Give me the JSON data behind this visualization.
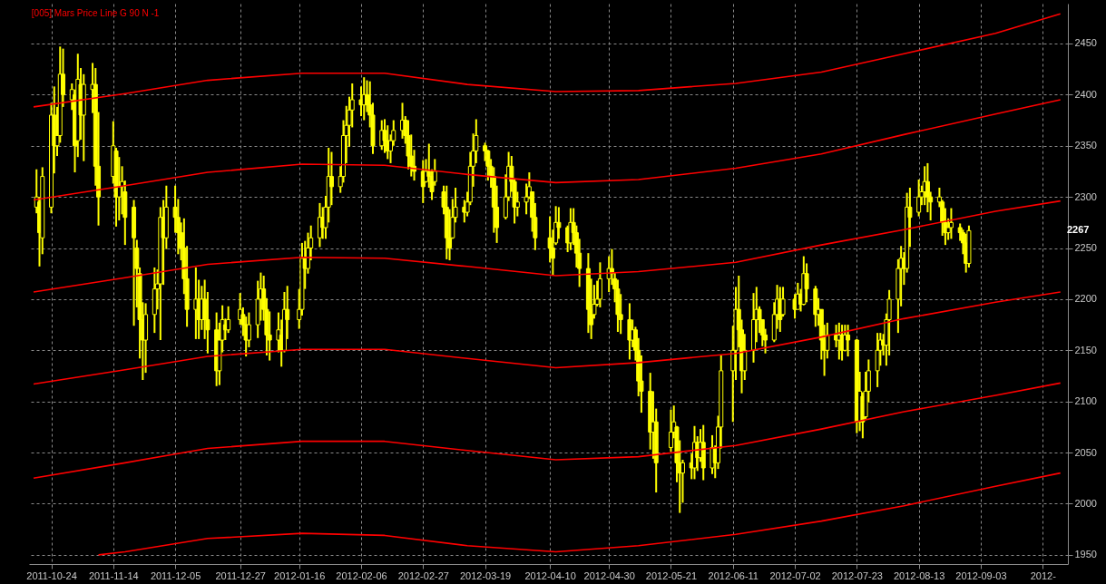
{
  "chart_data": {
    "type": "candlestick",
    "title": "[005] Mars Price Line G 90 N -1",
    "color": "#ffff00",
    "x": [
      "2011-10-19",
      "2011-10-20",
      "2011-10-21",
      "2011-10-24",
      "2011-10-25",
      "2011-10-26",
      "2011-10-27",
      "2011-10-28",
      "2011-10-31",
      "2011-11-01",
      "2011-11-02",
      "2011-11-03",
      "2011-11-04",
      "2011-11-07",
      "2011-11-08",
      "2011-11-09",
      "2011-11-14",
      "2011-11-15",
      "2011-11-16",
      "2011-11-17",
      "2011-11-18",
      "2011-11-21",
      "2011-11-22",
      "2011-11-23",
      "2011-11-24",
      "2011-11-25",
      "2011-11-28",
      "2011-11-29",
      "2011-11-30",
      "2011-12-01",
      "2011-12-02",
      "2011-12-05",
      "2011-12-06",
      "2011-12-07",
      "2011-12-08",
      "2011-12-09",
      "2011-12-12",
      "2011-12-13",
      "2011-12-14",
      "2011-12-15",
      "2011-12-16",
      "2011-12-19",
      "2011-12-20",
      "2011-12-21",
      "2011-12-22",
      "2011-12-23",
      "2011-12-27",
      "2011-12-28",
      "2011-12-29",
      "2011-12-30",
      "2012-01-02",
      "2012-01-03",
      "2012-01-04",
      "2012-01-05",
      "2012-01-06",
      "2012-01-09",
      "2012-01-10",
      "2012-01-11",
      "2012-01-12",
      "2012-01-16",
      "2012-01-17",
      "2012-01-18",
      "2012-01-19",
      "2012-01-20",
      "2012-01-23",
      "2012-01-24",
      "2012-01-25",
      "2012-01-26",
      "2012-01-27",
      "2012-01-30",
      "2012-01-31",
      "2012-02-01",
      "2012-02-02",
      "2012-02-03",
      "2012-02-06",
      "2012-02-07",
      "2012-02-08",
      "2012-02-09",
      "2012-02-10",
      "2012-02-13",
      "2012-02-14",
      "2012-02-15",
      "2012-02-16",
      "2012-02-17",
      "2012-02-20",
      "2012-02-21",
      "2012-02-22",
      "2012-02-23",
      "2012-02-24",
      "2012-02-27",
      "2012-02-28",
      "2012-02-29",
      "2012-03-01",
      "2012-03-02",
      "2012-03-05",
      "2012-03-06",
      "2012-03-07",
      "2012-03-08",
      "2012-03-09",
      "2012-03-12",
      "2012-03-13",
      "2012-03-14",
      "2012-03-15",
      "2012-03-16",
      "2012-03-19",
      "2012-03-20",
      "2012-03-21",
      "2012-03-22",
      "2012-03-23",
      "2012-03-26",
      "2012-03-27",
      "2012-03-28",
      "2012-03-29",
      "2012-03-30",
      "2012-04-02",
      "2012-04-03",
      "2012-04-04",
      "2012-04-05",
      "2012-04-10",
      "2012-04-11",
      "2012-04-12",
      "2012-04-13",
      "2012-04-16",
      "2012-04-17",
      "2012-04-18",
      "2012-04-19",
      "2012-04-20",
      "2012-04-23",
      "2012-04-24",
      "2012-04-25",
      "2012-04-26",
      "2012-04-27",
      "2012-04-30",
      "2012-05-01",
      "2012-05-02",
      "2012-05-03",
      "2012-05-04",
      "2012-05-07",
      "2012-05-08",
      "2012-05-09",
      "2012-05-10",
      "2012-05-11",
      "2012-05-14",
      "2012-05-15",
      "2012-05-16",
      "2012-05-21",
      "2012-05-22",
      "2012-05-23",
      "2012-05-24",
      "2012-05-25",
      "2012-05-28",
      "2012-05-29",
      "2012-05-30",
      "2012-05-31",
      "2012-06-01",
      "2012-06-04",
      "2012-06-05",
      "2012-06-06",
      "2012-06-07",
      "2012-06-11",
      "2012-06-12",
      "2012-06-13",
      "2012-06-14",
      "2012-06-15",
      "2012-06-18",
      "2012-06-19",
      "2012-06-20",
      "2012-06-21",
      "2012-06-22",
      "2012-06-25",
      "2012-06-26",
      "2012-06-27",
      "2012-06-28",
      "2012-07-02",
      "2012-07-03",
      "2012-07-04",
      "2012-07-05",
      "2012-07-06",
      "2012-07-09",
      "2012-07-10",
      "2012-07-11",
      "2012-07-12",
      "2012-07-13",
      "2012-07-16",
      "2012-07-17",
      "2012-07-18",
      "2012-07-19",
      "2012-07-20",
      "2012-07-23",
      "2012-07-24",
      "2012-07-25",
      "2012-07-26",
      "2012-07-27",
      "2012-07-30",
      "2012-07-31",
      "2012-08-01",
      "2012-08-02",
      "2012-08-03",
      "2012-08-06",
      "2012-08-07",
      "2012-08-08",
      "2012-08-09",
      "2012-08-10",
      "2012-08-13",
      "2012-08-14",
      "2012-08-15",
      "2012-08-16",
      "2012-08-17",
      "2012-08-20",
      "2012-08-21",
      "2012-08-22",
      "2012-08-23",
      "2012-08-24",
      "2012-08-27",
      "2012-08-28",
      "2012-08-29",
      "2012-08-30"
    ],
    "ohlc": [
      [
        2290,
        2327,
        2284,
        2300
      ],
      [
        2295,
        2300,
        2232,
        2265
      ],
      [
        2260,
        2329,
        2244,
        2320
      ],
      [
        2290,
        2392,
        2284,
        2380
      ],
      [
        2380,
        2408,
        2323,
        2350
      ],
      [
        2350,
        2388,
        2340,
        2360
      ],
      [
        2360,
        2447,
        2353,
        2420
      ],
      [
        2420,
        2445,
        2388,
        2400
      ],
      [
        2395,
        2411,
        2385,
        2405
      ],
      [
        2400,
        2405,
        2324,
        2350
      ],
      [
        2355,
        2440,
        2339,
        2415
      ],
      [
        2410,
        2426,
        2356,
        2380
      ],
      [
        2380,
        2420,
        2335,
        2410
      ],
      [
        2405,
        2431,
        2382,
        2410
      ],
      [
        2410,
        2426,
        2311,
        2330
      ],
      [
        2330,
        2383,
        2272,
        2300
      ],
      [
        2320,
        2374,
        2313,
        2350
      ],
      [
        2345,
        2348,
        2271,
        2300
      ],
      [
        2300,
        2339,
        2277,
        2310
      ],
      [
        2310,
        2330,
        2283,
        2315
      ],
      [
        2305,
        2316,
        2253,
        2280
      ],
      [
        2290,
        2297,
        2174,
        2260
      ],
      [
        2250,
        2258,
        2192,
        2230
      ],
      [
        2225,
        2231,
        2142,
        2180
      ],
      [
        2180,
        2197,
        2121,
        2160
      ],
      [
        2160,
        2196,
        2128,
        2185
      ],
      [
        2185,
        2231,
        2167,
        2210
      ],
      [
        2210,
        2229,
        2190,
        2215
      ],
      [
        2215,
        2290,
        2160,
        2280
      ],
      [
        2280,
        2297,
        2214,
        2260
      ],
      [
        2260,
        2311,
        2249,
        2290
      ],
      [
        2290,
        2311,
        2265,
        2280
      ],
      [
        2280,
        2298,
        2244,
        2265
      ],
      [
        2265,
        2275,
        2238,
        2250
      ],
      [
        2250,
        2279,
        2205,
        2220
      ],
      [
        2220,
        2252,
        2173,
        2190
      ],
      [
        2190,
        2231,
        2161,
        2200
      ],
      [
        2200,
        2219,
        2161,
        2180
      ],
      [
        2180,
        2213,
        2170,
        2200
      ],
      [
        2200,
        2219,
        2161,
        2180
      ],
      [
        2180,
        2207,
        2147,
        2170
      ],
      [
        2170,
        2187,
        2115,
        2130
      ],
      [
        2130,
        2177,
        2116,
        2160
      ],
      [
        2160,
        2194,
        2148,
        2180
      ],
      [
        2175,
        2181,
        2160,
        2170
      ],
      [
        2170,
        2193,
        2167,
        2180
      ],
      [
        2180,
        2206,
        2175,
        2190
      ],
      [
        2185,
        2192,
        2164,
        2175
      ],
      [
        2175,
        2183,
        2144,
        2160
      ],
      [
        2160,
        2187,
        2153,
        2175
      ],
      [
        2175,
        2218,
        2162,
        2200
      ],
      [
        2200,
        2226,
        2179,
        2210
      ],
      [
        2210,
        2223,
        2179,
        2190
      ],
      [
        2190,
        2201,
        2145,
        2165
      ],
      [
        2165,
        2188,
        2140,
        2160
      ],
      [
        2160,
        2187,
        2148,
        2170
      ],
      [
        2165,
        2180,
        2134,
        2150
      ],
      [
        2150,
        2207,
        2148,
        2190
      ],
      [
        2190,
        2213,
        2161,
        2180
      ],
      [
        2180,
        2210,
        2171,
        2190
      ],
      [
        2190,
        2255,
        2184,
        2240
      ],
      [
        2240,
        2257,
        2210,
        2230
      ],
      [
        2230,
        2265,
        2225,
        2250
      ],
      [
        2250,
        2272,
        2238,
        2260
      ],
      [
        2260,
        2294,
        2251,
        2280
      ],
      [
        2280,
        2290,
        2259,
        2270
      ],
      [
        2270,
        2301,
        2259,
        2290
      ],
      [
        2290,
        2348,
        2275,
        2320
      ],
      [
        2320,
        2344,
        2292,
        2310
      ],
      [
        2310,
        2330,
        2304,
        2320
      ],
      [
        2320,
        2375,
        2314,
        2360
      ],
      [
        2360,
        2389,
        2333,
        2370
      ],
      [
        2370,
        2398,
        2349,
        2385
      ],
      [
        2385,
        2411,
        2368,
        2395
      ],
      [
        2395,
        2408,
        2379,
        2390
      ],
      [
        2390,
        2417,
        2375,
        2400
      ],
      [
        2400,
        2414,
        2383,
        2390
      ],
      [
        2390,
        2413,
        2368,
        2380
      ],
      [
        2380,
        2392,
        2342,
        2350
      ],
      [
        2350,
        2375,
        2346,
        2365
      ],
      [
        2365,
        2376,
        2343,
        2355
      ],
      [
        2355,
        2370,
        2337,
        2345
      ],
      [
        2345,
        2361,
        2333,
        2355
      ],
      [
        2355,
        2375,
        2350,
        2365
      ],
      [
        2365,
        2392,
        2357,
        2375
      ],
      [
        2375,
        2379,
        2352,
        2360
      ],
      [
        2360,
        2375,
        2327,
        2340
      ],
      [
        2340,
        2361,
        2320,
        2330
      ],
      [
        2330,
        2346,
        2316,
        2325
      ],
      [
        2325,
        2336,
        2294,
        2310
      ],
      [
        2315,
        2337,
        2314,
        2325
      ],
      [
        2325,
        2352,
        2309,
        2320
      ],
      [
        2320,
        2327,
        2297,
        2305
      ],
      [
        2315,
        2337,
        2311,
        2325
      ],
      [
        2305,
        2311,
        2283,
        2290
      ],
      [
        2290,
        2311,
        2239,
        2260
      ],
      [
        2260,
        2288,
        2238,
        2250
      ],
      [
        2260,
        2298,
        2259,
        2280
      ],
      [
        2280,
        2309,
        2275,
        2290
      ],
      [
        2290,
        2297,
        2275,
        2285
      ],
      [
        2285,
        2305,
        2281,
        2295
      ],
      [
        2295,
        2344,
        2292,
        2330
      ],
      [
        2330,
        2362,
        2310,
        2345
      ],
      [
        2345,
        2376,
        2333,
        2360
      ],
      [
        2350,
        2353,
        2335,
        2345
      ],
      [
        2345,
        2346,
        2316,
        2330
      ],
      [
        2330,
        2337,
        2309,
        2320
      ],
      [
        2320,
        2329,
        2265,
        2290
      ],
      [
        2290,
        2311,
        2255,
        2270
      ],
      [
        2280,
        2322,
        2278,
        2300
      ],
      [
        2300,
        2344,
        2296,
        2330
      ],
      [
        2330,
        2340,
        2305,
        2315
      ],
      [
        2315,
        2318,
        2274,
        2290
      ],
      [
        2290,
        2305,
        2281,
        2295
      ],
      [
        2295,
        2313,
        2283,
        2300
      ],
      [
        2300,
        2324,
        2298,
        2310
      ],
      [
        2305,
        2305,
        2266,
        2280
      ],
      [
        2280,
        2294,
        2248,
        2260
      ],
      [
        2260,
        2281,
        2236,
        2250
      ],
      [
        2250,
        2268,
        2223,
        2240
      ],
      [
        2255,
        2291,
        2253,
        2275
      ],
      [
        2275,
        2290,
        2259,
        2270
      ],
      [
        2270,
        2272,
        2246,
        2255
      ],
      [
        2255,
        2289,
        2248,
        2275
      ],
      [
        2275,
        2289,
        2253,
        2265
      ],
      [
        2265,
        2272,
        2231,
        2245
      ],
      [
        2245,
        2259,
        2212,
        2230
      ],
      [
        2230,
        2245,
        2167,
        2190
      ],
      [
        2190,
        2220,
        2161,
        2175
      ],
      [
        2185,
        2214,
        2181,
        2195
      ],
      [
        2195,
        2218,
        2193,
        2200
      ],
      [
        2200,
        2236,
        2192,
        2220
      ],
      [
        2220,
        2242,
        2207,
        2230
      ],
      [
        2230,
        2249,
        2214,
        2225
      ],
      [
        2220,
        2226,
        2197,
        2210
      ],
      [
        2210,
        2219,
        2168,
        2185
      ],
      [
        2185,
        2205,
        2166,
        2180
      ],
      [
        2180,
        2196,
        2141,
        2160
      ],
      [
        2160,
        2180,
        2153,
        2170
      ],
      [
        2170,
        2173,
        2140,
        2150
      ],
      [
        2150,
        2162,
        2105,
        2120
      ],
      [
        2120,
        2145,
        2089,
        2110
      ],
      [
        2110,
        2128,
        2053,
        2070
      ],
      [
        2070,
        2110,
        2044,
        2080
      ],
      [
        2080,
        2093,
        2011,
        2040
      ],
      [
        2055,
        2092,
        2051,
        2070
      ],
      [
        2070,
        2096,
        2064,
        2080
      ],
      [
        2075,
        2076,
        2021,
        2040
      ],
      [
        2040,
        2062,
        1991,
        2030
      ],
      [
        2030,
        2043,
        2001,
        2040
      ],
      [
        2040,
        2049,
        2024,
        2035
      ],
      [
        2035,
        2076,
        2024,
        2060
      ],
      [
        2060,
        2066,
        2032,
        2045
      ],
      [
        2045,
        2073,
        2041,
        2060
      ],
      [
        2060,
        2077,
        2023,
        2035
      ],
      [
        2035,
        2067,
        2029,
        2055
      ],
      [
        2055,
        2057,
        2025,
        2040
      ],
      [
        2040,
        2086,
        2034,
        2075
      ],
      [
        2075,
        2145,
        2054,
        2130
      ],
      [
        2130,
        2174,
        2080,
        2150
      ],
      [
        2150,
        2212,
        2121,
        2190
      ],
      [
        2190,
        2223,
        2153,
        2170
      ],
      [
        2170,
        2180,
        2108,
        2130
      ],
      [
        2130,
        2166,
        2121,
        2150
      ],
      [
        2150,
        2206,
        2138,
        2180
      ],
      [
        2180,
        2212,
        2158,
        2190
      ],
      [
        2190,
        2193,
        2167,
        2180
      ],
      [
        2180,
        2180,
        2154,
        2165
      ],
      [
        2165,
        2171,
        2147,
        2160
      ],
      [
        2160,
        2197,
        2158,
        2185
      ],
      [
        2185,
        2214,
        2171,
        2200
      ],
      [
        2200,
        2212,
        2168,
        2180
      ],
      [
        2185,
        2212,
        2183,
        2200
      ],
      [
        2200,
        2205,
        2181,
        2190
      ],
      [
        2190,
        2216,
        2190,
        2205
      ],
      [
        2205,
        2210,
        2188,
        2195
      ],
      [
        2195,
        2242,
        2194,
        2225
      ],
      [
        2225,
        2235,
        2197,
        2210
      ],
      [
        2210,
        2213,
        2173,
        2185
      ],
      [
        2185,
        2201,
        2174,
        2190
      ],
      [
        2190,
        2190,
        2141,
        2160
      ],
      [
        2160,
        2175,
        2125,
        2150
      ],
      [
        2150,
        2177,
        2142,
        2165
      ],
      [
        2165,
        2175,
        2153,
        2160
      ],
      [
        2160,
        2177,
        2141,
        2165
      ],
      [
        2165,
        2175,
        2140,
        2150
      ],
      [
        2150,
        2175,
        2149,
        2165
      ],
      [
        2165,
        2175,
        2144,
        2160
      ],
      [
        2160,
        2161,
        2069,
        2080
      ],
      [
        2080,
        2129,
        2071,
        2110
      ],
      [
        2105,
        2109,
        2064,
        2080
      ],
      [
        2085,
        2129,
        2083,
        2110
      ],
      [
        2110,
        2141,
        2099,
        2130
      ],
      [
        2130,
        2167,
        2114,
        2150
      ],
      [
        2150,
        2167,
        2135,
        2160
      ],
      [
        2160,
        2166,
        2145,
        2155
      ],
      [
        2155,
        2186,
        2135,
        2180
      ],
      [
        2180,
        2209,
        2145,
        2200
      ],
      [
        2200,
        2239,
        2167,
        2230
      ],
      [
        2230,
        2252,
        2193,
        2240
      ],
      [
        2240,
        2246,
        2214,
        2230
      ],
      [
        2230,
        2304,
        2226,
        2290
      ],
      [
        2290,
        2309,
        2251,
        2280
      ],
      [
        2285,
        2317,
        2281,
        2300
      ],
      [
        2300,
        2311,
        2292,
        2305
      ],
      [
        2305,
        2330,
        2292,
        2315
      ],
      [
        2315,
        2333,
        2285,
        2300
      ],
      [
        2300,
        2305,
        2277,
        2295
      ],
      [
        2295,
        2309,
        2290,
        2300
      ],
      [
        2295,
        2297,
        2262,
        2275
      ],
      [
        2275,
        2289,
        2253,
        2265
      ],
      [
        2265,
        2279,
        2258,
        2270
      ],
      [
        2270,
        2289,
        2259,
        2275
      ],
      [
        2270,
        2274,
        2257,
        2265
      ],
      [
        2265,
        2268,
        2244,
        2255
      ],
      [
        2255,
        2264,
        2226,
        2235
      ],
      [
        2235,
        2272,
        2231,
        2267
      ]
    ],
    "series": [
      {
        "type": "line",
        "color": "#ff0000",
        "x": [
          "2011-10-18",
          "2011-11-18",
          "2011-12-16",
          "2012-01-17",
          "2012-02-14",
          "2012-03-13",
          "2012-04-12",
          "2012-05-10",
          "2012-06-12",
          "2012-07-11",
          "2012-08-08",
          "2012-09-08",
          "2012-09-30"
        ],
        "values": [
          2388,
          2401,
          2414,
          2421,
          2421,
          2410,
          2403,
          2404,
          2411,
          2422,
          2440,
          2460,
          2479
        ]
      },
      {
        "type": "line",
        "color": "#ff0000",
        "x": [
          "2011-10-18",
          "2011-11-18",
          "2011-12-16",
          "2012-01-17",
          "2012-02-14",
          "2012-03-13",
          "2012-04-12",
          "2012-05-10",
          "2012-06-12",
          "2012-07-11",
          "2012-08-08",
          "2012-09-08",
          "2012-09-30"
        ],
        "values": [
          2297,
          2311,
          2324,
          2332,
          2331,
          2322,
          2314,
          2317,
          2328,
          2342,
          2361,
          2381,
          2395
        ]
      },
      {
        "type": "line",
        "color": "#ff0000",
        "x": [
          "2011-10-18",
          "2011-11-18",
          "2011-12-16",
          "2012-01-17",
          "2012-02-14",
          "2012-03-13",
          "2012-04-12",
          "2012-05-10",
          "2012-06-12",
          "2012-07-11",
          "2012-08-08",
          "2012-09-08",
          "2012-09-30"
        ],
        "values": [
          2207,
          2221,
          2234,
          2241,
          2240,
          2232,
          2223,
          2227,
          2236,
          2253,
          2268,
          2286,
          2296
        ]
      },
      {
        "type": "line",
        "color": "#ff0000",
        "x": [
          "2011-10-18",
          "2011-11-18",
          "2011-12-16",
          "2012-01-17",
          "2012-02-14",
          "2012-03-13",
          "2012-04-12",
          "2012-05-10",
          "2012-06-12",
          "2012-07-11",
          "2012-08-08",
          "2012-09-08",
          "2012-09-30"
        ],
        "values": [
          2117,
          2131,
          2144,
          2151,
          2151,
          2142,
          2133,
          2138,
          2147,
          2163,
          2181,
          2197,
          2207
        ]
      },
      {
        "type": "line",
        "color": "#ff0000",
        "x": [
          "2011-10-18",
          "2011-11-18",
          "2011-12-16",
          "2012-01-17",
          "2012-02-14",
          "2012-03-13",
          "2012-04-12",
          "2012-05-10",
          "2012-06-12",
          "2012-07-11",
          "2012-08-08",
          "2012-09-08",
          "2012-09-30"
        ],
        "values": [
          2025,
          2040,
          2054,
          2061,
          2061,
          2052,
          2043,
          2046,
          2057,
          2073,
          2090,
          2106,
          2118
        ]
      },
      {
        "type": "line",
        "color": "#ff0000",
        "x": [
          "2011-11-09",
          "2011-11-18",
          "2011-12-16",
          "2012-01-17",
          "2012-02-14",
          "2012-03-13",
          "2012-04-12",
          "2012-05-10",
          "2012-06-12",
          "2012-07-11",
          "2012-08-08",
          "2012-09-08",
          "2012-09-30"
        ],
        "values": [
          1950,
          1953,
          1966,
          1971,
          1969,
          1959,
          1953,
          1959,
          1970,
          1983,
          1998,
          2017,
          2030
        ]
      }
    ],
    "xlim": [
      "2011-10-18",
      "2012-10-01"
    ],
    "xticks": [
      "2011-10-24",
      "2011-11-14",
      "2011-12-05",
      "2011-12-27",
      "2012-01-16",
      "2012-02-06",
      "2012-02-27",
      "2012-03-19",
      "2012-04-10",
      "2012-04-30",
      "2012-05-21",
      "2012-06-11",
      "2012-07-02",
      "2012-07-23",
      "2012-08-13",
      "2012-09-03",
      {
        "value": "2012-09-24",
        "label": "2012-"
      }
    ],
    "ylim": [
      1941,
      2489
    ],
    "yticks": [
      1950,
      2000,
      2050,
      2100,
      2150,
      2200,
      2250,
      2300,
      2350,
      2400,
      2450
    ],
    "grid": true,
    "annotations": [
      "2267"
    ]
  }
}
